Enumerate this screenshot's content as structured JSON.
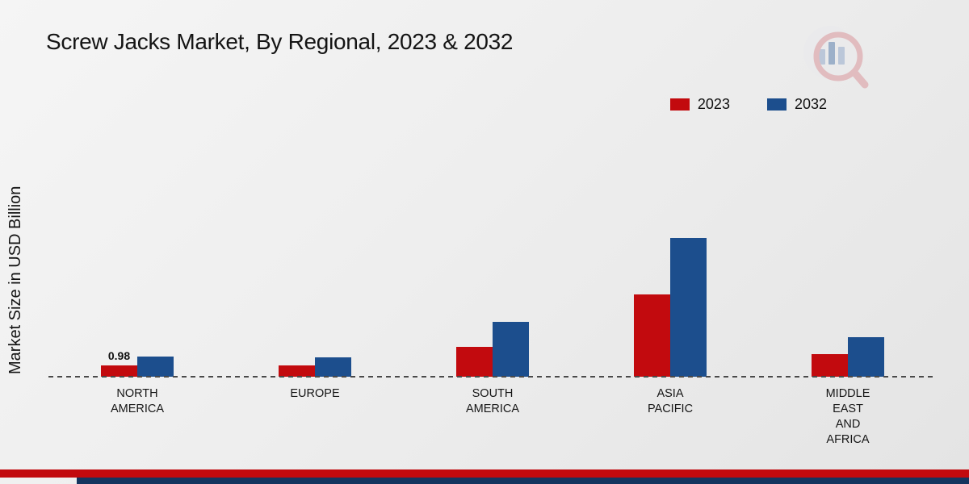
{
  "chart_data": {
    "type": "bar",
    "title": "Screw Jacks Market, By Regional, 2023 & 2032",
    "ylabel": "Market Size in USD Billion",
    "unit": "USD Billion",
    "categories": [
      "NORTH AMERICA",
      "EUROPE",
      "SOUTH AMERICA",
      "ASIA PACIFIC",
      "MIDDLE EAST AND AFRICA"
    ],
    "category_lines": [
      [
        "NORTH",
        "AMERICA"
      ],
      [
        "EUROPE"
      ],
      [
        "SOUTH",
        "AMERICA"
      ],
      [
        "ASIA",
        "PACIFIC"
      ],
      [
        "MIDDLE",
        "EAST",
        "AND",
        "AFRICA"
      ]
    ],
    "series": [
      {
        "name": "2023",
        "color": "#c20a0e",
        "values": [
          0.98,
          0.95,
          2.5,
          6.9,
          1.9
        ]
      },
      {
        "name": "2032",
        "color": "#1c4e8d",
        "values": [
          1.7,
          1.65,
          4.6,
          11.6,
          3.3
        ]
      }
    ],
    "data_labels": [
      {
        "series": "2023",
        "category_index": 0,
        "text": "0.98"
      }
    ],
    "ylim": [
      0,
      12.5
    ],
    "grid": false,
    "legend_position": "top-right",
    "baseline_style": "dashed"
  },
  "branding": {
    "logo_name": "market-research-logo",
    "footer_red_color": "#c20a0e",
    "footer_navy_color": "#14355f"
  }
}
